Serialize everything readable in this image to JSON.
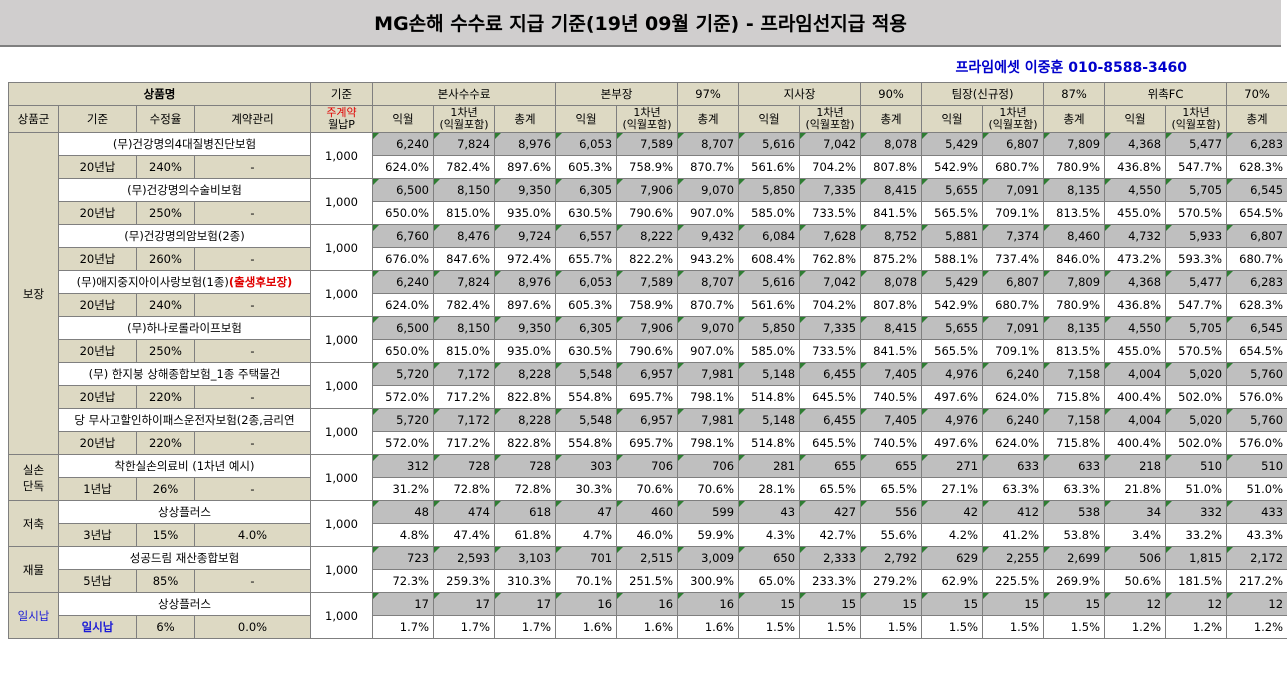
{
  "title": "MG손해 수수료 지급 기준(19년 09월 기준) - 프라임선지급 적용",
  "contact": "프라임에셋 이중훈 010-8588-3460",
  "header": {
    "product_name": "상품명",
    "basis": "기준",
    "groups": [
      {
        "name": "본사수수료",
        "pct": ""
      },
      {
        "name": "본부장",
        "pct": "97%"
      },
      {
        "name": "지사장",
        "pct": "90%"
      },
      {
        "name": "팀장(신규정)",
        "pct": "87%"
      },
      {
        "name": "위촉FC",
        "pct": "70%"
      }
    ],
    "col_group": "상품군",
    "col_basis": "기준",
    "col_rate": "수정율",
    "col_contract": "계약관리",
    "col_premium_1": "주계약",
    "col_premium_2": "월납P",
    "sub_month": "익월",
    "sub_year1_1": "1차년",
    "sub_year1_2": "(익월포함)",
    "sub_total": "총계"
  },
  "categories": [
    {
      "name": "보장",
      "products": [
        {
          "name": "(무)건강명의4대질병진단보험",
          "extra": "",
          "basis": "20년납",
          "rate": "240%",
          "contract": "-",
          "premium": "1,000",
          "amounts": [
            "6,240",
            "7,824",
            "8,976",
            "6,053",
            "7,589",
            "8,707",
            "5,616",
            "7,042",
            "8,078",
            "5,429",
            "6,807",
            "7,809",
            "4,368",
            "5,477",
            "6,283"
          ],
          "percents": [
            "624.0%",
            "782.4%",
            "897.6%",
            "605.3%",
            "758.9%",
            "870.7%",
            "561.6%",
            "704.2%",
            "807.8%",
            "542.9%",
            "680.7%",
            "780.9%",
            "436.8%",
            "547.7%",
            "628.3%"
          ]
        },
        {
          "name": "(무)건강명의수술비보험",
          "extra": "",
          "basis": "20년납",
          "rate": "250%",
          "contract": "-",
          "premium": "1,000",
          "amounts": [
            "6,500",
            "8,150",
            "9,350",
            "6,305",
            "7,906",
            "9,070",
            "5,850",
            "7,335",
            "8,415",
            "5,655",
            "7,091",
            "8,135",
            "4,550",
            "5,705",
            "6,545"
          ],
          "percents": [
            "650.0%",
            "815.0%",
            "935.0%",
            "630.5%",
            "790.6%",
            "907.0%",
            "585.0%",
            "733.5%",
            "841.5%",
            "565.5%",
            "709.1%",
            "813.5%",
            "455.0%",
            "570.5%",
            "654.5%"
          ]
        },
        {
          "name": "(무)건강명의암보험(2종)",
          "extra": "",
          "basis": "20년납",
          "rate": "260%",
          "contract": "-",
          "premium": "1,000",
          "amounts": [
            "6,760",
            "8,476",
            "9,724",
            "6,557",
            "8,222",
            "9,432",
            "6,084",
            "7,628",
            "8,752",
            "5,881",
            "7,374",
            "8,460",
            "4,732",
            "5,933",
            "6,807"
          ],
          "percents": [
            "676.0%",
            "847.6%",
            "972.4%",
            "655.7%",
            "822.2%",
            "943.2%",
            "608.4%",
            "762.8%",
            "875.2%",
            "588.1%",
            "737.4%",
            "846.0%",
            "473.2%",
            "593.3%",
            "680.7%"
          ]
        },
        {
          "name": "(무)애지중지아이사랑보험(1종)",
          "extra": "(출생후보장)",
          "basis": "20년납",
          "rate": "240%",
          "contract": "-",
          "premium": "1,000",
          "amounts": [
            "6,240",
            "7,824",
            "8,976",
            "6,053",
            "7,589",
            "8,707",
            "5,616",
            "7,042",
            "8,078",
            "5,429",
            "6,807",
            "7,809",
            "4,368",
            "5,477",
            "6,283"
          ],
          "percents": [
            "624.0%",
            "782.4%",
            "897.6%",
            "605.3%",
            "758.9%",
            "870.7%",
            "561.6%",
            "704.2%",
            "807.8%",
            "542.9%",
            "680.7%",
            "780.9%",
            "436.8%",
            "547.7%",
            "628.3%"
          ]
        },
        {
          "name": "(무)하나로롤라이프보험",
          "extra": "",
          "basis": "20년납",
          "rate": "250%",
          "contract": "-",
          "premium": "1,000",
          "amounts": [
            "6,500",
            "8,150",
            "9,350",
            "6,305",
            "7,906",
            "9,070",
            "5,850",
            "7,335",
            "8,415",
            "5,655",
            "7,091",
            "8,135",
            "4,550",
            "5,705",
            "6,545"
          ],
          "percents": [
            "650.0%",
            "815.0%",
            "935.0%",
            "630.5%",
            "790.6%",
            "907.0%",
            "585.0%",
            "733.5%",
            "841.5%",
            "565.5%",
            "709.1%",
            "813.5%",
            "455.0%",
            "570.5%",
            "654.5%"
          ]
        },
        {
          "name": "(무) 한지붕 상해종합보험_1종 주택물건",
          "extra": "",
          "basis": "20년납",
          "rate": "220%",
          "contract": "-",
          "premium": "1,000",
          "amounts": [
            "5,720",
            "7,172",
            "8,228",
            "5,548",
            "6,957",
            "7,981",
            "5,148",
            "6,455",
            "7,405",
            "4,976",
            "6,240",
            "7,158",
            "4,004",
            "5,020",
            "5,760"
          ],
          "percents": [
            "572.0%",
            "717.2%",
            "822.8%",
            "554.8%",
            "695.7%",
            "798.1%",
            "514.8%",
            "645.5%",
            "740.5%",
            "497.6%",
            "624.0%",
            "715.8%",
            "400.4%",
            "502.0%",
            "576.0%"
          ]
        },
        {
          "name": "당 무사고할인하이패스운전자보험(2종,금리연",
          "extra": "",
          "basis": "20년납",
          "rate": "220%",
          "contract": "-",
          "premium": "1,000",
          "amounts": [
            "5,720",
            "7,172",
            "8,228",
            "5,548",
            "6,957",
            "7,981",
            "5,148",
            "6,455",
            "7,405",
            "4,976",
            "6,240",
            "7,158",
            "4,004",
            "5,020",
            "5,760"
          ],
          "percents": [
            "572.0%",
            "717.2%",
            "822.8%",
            "554.8%",
            "695.7%",
            "798.1%",
            "514.8%",
            "645.5%",
            "740.5%",
            "497.6%",
            "624.0%",
            "715.8%",
            "400.4%",
            "502.0%",
            "576.0%"
          ]
        }
      ]
    },
    {
      "name": "실손\n단독",
      "products": [
        {
          "name": "착한실손의료비 (1차년 예시)",
          "extra": "",
          "basis": "1년납",
          "rate": "26%",
          "contract": "-",
          "premium": "1,000",
          "amounts": [
            "312",
            "728",
            "728",
            "303",
            "706",
            "706",
            "281",
            "655",
            "655",
            "271",
            "633",
            "633",
            "218",
            "510",
            "510"
          ],
          "percents": [
            "31.2%",
            "72.8%",
            "72.8%",
            "30.3%",
            "70.6%",
            "70.6%",
            "28.1%",
            "65.5%",
            "65.5%",
            "27.1%",
            "63.3%",
            "63.3%",
            "21.8%",
            "51.0%",
            "51.0%"
          ]
        }
      ]
    },
    {
      "name": "저축",
      "products": [
        {
          "name": "상상플러스",
          "extra": "",
          "basis": "3년납",
          "rate": "15%",
          "contract": "4.0%",
          "premium": "1,000",
          "amounts": [
            "48",
            "474",
            "618",
            "47",
            "460",
            "599",
            "43",
            "427",
            "556",
            "42",
            "412",
            "538",
            "34",
            "332",
            "433"
          ],
          "percents": [
            "4.8%",
            "47.4%",
            "61.8%",
            "4.7%",
            "46.0%",
            "59.9%",
            "4.3%",
            "42.7%",
            "55.6%",
            "4.2%",
            "41.2%",
            "53.8%",
            "3.4%",
            "33.2%",
            "43.3%"
          ]
        }
      ]
    },
    {
      "name": "재물",
      "products": [
        {
          "name": "성공드림 재산종합보험",
          "extra": "",
          "basis": "5년납",
          "rate": "85%",
          "contract": "-",
          "premium": "1,000",
          "amounts": [
            "723",
            "2,593",
            "3,103",
            "701",
            "2,515",
            "3,009",
            "650",
            "2,333",
            "2,792",
            "629",
            "2,255",
            "2,699",
            "506",
            "1,815",
            "2,172"
          ],
          "percents": [
            "72.3%",
            "259.3%",
            "310.3%",
            "70.1%",
            "251.5%",
            "300.9%",
            "65.0%",
            "233.3%",
            "279.2%",
            "62.9%",
            "225.5%",
            "269.9%",
            "50.6%",
            "181.5%",
            "217.2%"
          ]
        }
      ]
    },
    {
      "name": "일시납",
      "products": [
        {
          "name": "상상플러스",
          "extra": "",
          "basis": "일시납",
          "rate": "6%",
          "contract": "0.0%",
          "premium": "1,000",
          "amounts": [
            "17",
            "17",
            "17",
            "16",
            "16",
            "16",
            "15",
            "15",
            "15",
            "15",
            "15",
            "15",
            "12",
            "12",
            "12"
          ],
          "percents": [
            "1.7%",
            "1.7%",
            "1.7%",
            "1.6%",
            "1.6%",
            "1.6%",
            "1.5%",
            "1.5%",
            "1.5%",
            "1.5%",
            "1.5%",
            "1.5%",
            "1.2%",
            "1.2%",
            "1.2%"
          ]
        }
      ]
    }
  ]
}
